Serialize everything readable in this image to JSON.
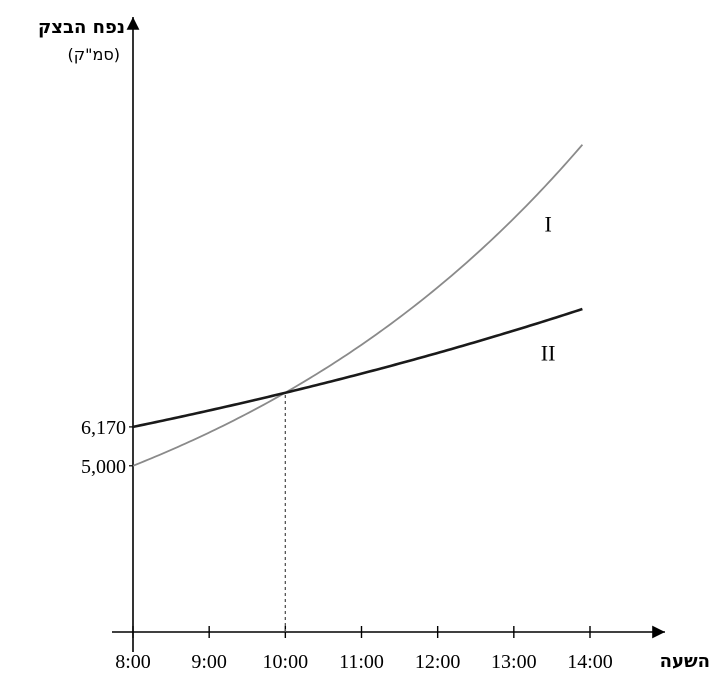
{
  "chart_data": {
    "type": "line",
    "ylabel": "נפח הבצק",
    "ylabel_unit": "(סמ\"ק)",
    "xlabel": "השעה",
    "x_ticks": [
      "8:00",
      "9:00",
      "10:00",
      "11:00",
      "12:00",
      "13:00",
      "14:00"
    ],
    "y_tick_labels": [
      {
        "value": 6170,
        "label": "6,170"
      },
      {
        "value": 5000,
        "label": "5,000"
      }
    ],
    "x_range": [
      8,
      14
    ],
    "y_range": [
      0,
      18500
    ],
    "grid": false,
    "series": [
      {
        "name": "I",
        "color": "#8a8a8a",
        "start_hour": 8,
        "end_hour": 13.9,
        "y0": 5000,
        "growth_per_hour": 1.2,
        "x": [
          8,
          9,
          10,
          11,
          12,
          13,
          13.9
        ],
        "y": [
          5000,
          6000,
          7200,
          8640,
          10368,
          12442,
          14675
        ]
      },
      {
        "name": "II",
        "color": "#1a1a1a",
        "start_hour": 8,
        "end_hour": 13.9,
        "y0": 6170,
        "growth_per_hour": 1.08,
        "x": [
          8,
          9,
          10,
          11,
          12,
          13,
          13.9
        ],
        "y": [
          6170,
          6664,
          7197,
          7773,
          8395,
          9066,
          9729
        ]
      }
    ],
    "annotations": [
      {
        "type": "vline",
        "x": 10,
        "style": "dotted",
        "from_y": 0,
        "to_y": 7200
      }
    ]
  }
}
